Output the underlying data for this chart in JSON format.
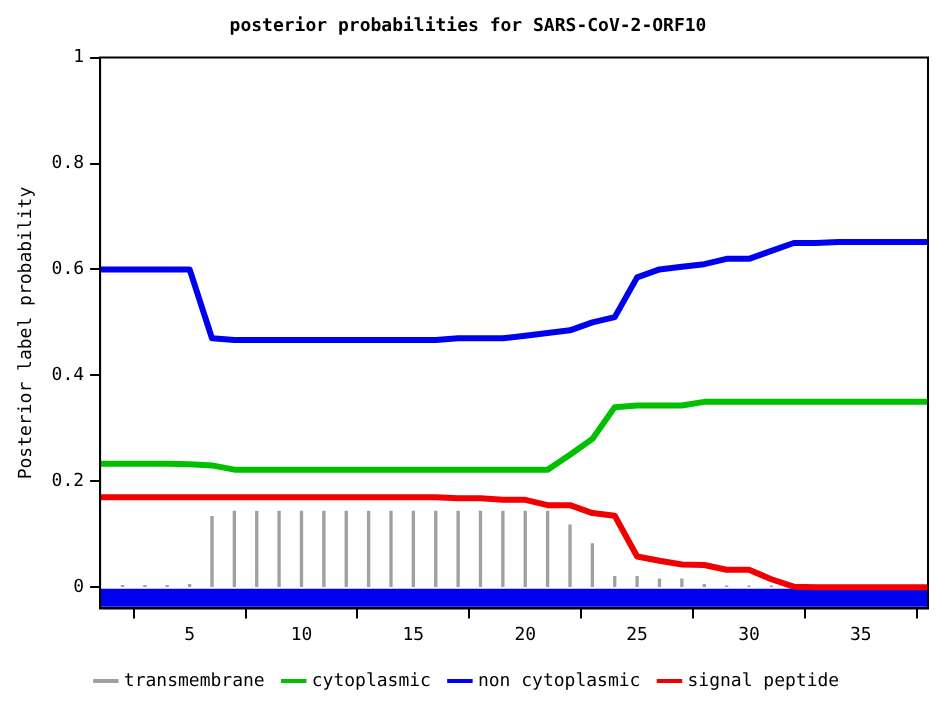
{
  "chart_data": {
    "type": "line",
    "title": "posterior probabilities for SARS-CoV-2-ORF10",
    "ylabel": "Posterior label probability",
    "x": [
      1,
      2,
      3,
      4,
      5,
      6,
      7,
      8,
      9,
      10,
      11,
      12,
      13,
      14,
      15,
      16,
      17,
      18,
      19,
      20,
      21,
      22,
      23,
      24,
      25,
      26,
      27,
      28,
      29,
      30,
      31,
      32,
      33,
      34,
      35,
      36,
      37,
      38
    ],
    "xlim": [
      1,
      38
    ],
    "xticks": [
      5,
      10,
      15,
      20,
      25,
      30,
      35
    ],
    "ylim": [
      -0.04,
      1
    ],
    "yticks": [
      0,
      0.2,
      0.4,
      0.6,
      0.8,
      1
    ],
    "grid": false,
    "legend": "bottom",
    "marker": "none",
    "series": [
      {
        "name": "transmembrane",
        "type": "bar",
        "color": "#a0a0a0",
        "values": [
          null,
          0.003,
          0.003,
          0.003,
          0.005,
          0.133,
          0.143,
          0.143,
          0.143,
          0.143,
          0.143,
          0.143,
          0.143,
          0.143,
          0.143,
          0.143,
          0.143,
          0.143,
          0.143,
          0.143,
          0.143,
          0.117,
          0.082,
          0.02,
          0.02,
          0.015,
          0.015,
          0.005,
          0.002,
          0.002,
          0.002,
          null,
          null,
          null,
          null,
          null,
          null,
          null
        ]
      },
      {
        "name": "cytoplasmic",
        "color": "#00c000",
        "values": [
          0.233,
          0.233,
          0.233,
          0.233,
          0.232,
          0.23,
          0.222,
          0.222,
          0.222,
          0.222,
          0.222,
          0.222,
          0.222,
          0.222,
          0.222,
          0.222,
          0.222,
          0.222,
          0.222,
          0.222,
          0.222,
          0.25,
          0.28,
          0.34,
          0.343,
          0.343,
          0.343,
          0.35,
          0.35,
          0.35,
          0.35,
          0.35,
          0.35,
          0.35,
          0.35,
          0.35,
          0.35,
          0.35
        ]
      },
      {
        "name": "non cytoplasmic",
        "color": "#0000f0",
        "values": [
          0.6,
          0.6,
          0.6,
          0.6,
          0.6,
          0.47,
          0.467,
          0.467,
          0.467,
          0.467,
          0.467,
          0.467,
          0.467,
          0.467,
          0.467,
          0.467,
          0.47,
          0.47,
          0.47,
          0.475,
          0.48,
          0.485,
          0.5,
          0.51,
          0.585,
          0.6,
          0.605,
          0.61,
          0.62,
          0.62,
          0.635,
          0.65,
          0.65,
          0.652,
          0.652,
          0.652,
          0.652,
          0.652
        ]
      },
      {
        "name": "signal peptide",
        "color": "#f00000",
        "values": [
          0.17,
          0.17,
          0.17,
          0.17,
          0.17,
          0.17,
          0.17,
          0.17,
          0.17,
          0.17,
          0.17,
          0.17,
          0.17,
          0.17,
          0.17,
          0.17,
          0.168,
          0.168,
          0.165,
          0.165,
          0.155,
          0.155,
          0.14,
          0.135,
          0.058,
          0.05,
          0.043,
          0.042,
          0.033,
          0.033,
          0.015,
          0.001,
          0,
          0,
          0,
          0,
          0,
          0
        ]
      },
      {
        "color": "#0000f0",
        "values": [
          -0.02,
          -0.02,
          -0.02,
          -0.02,
          -0.02,
          -0.02,
          -0.02,
          -0.02,
          -0.02,
          -0.02,
          -0.02,
          -0.02,
          -0.02,
          -0.02,
          -0.02,
          -0.02,
          -0.02,
          -0.02,
          -0.02,
          -0.02,
          -0.02,
          -0.02,
          -0.02,
          -0.02,
          -0.02,
          -0.02,
          -0.02,
          -0.02,
          -0.02,
          -0.02,
          -0.02,
          -0.02,
          -0.02,
          -0.02,
          -0.02,
          -0.02,
          -0.02,
          -0.02
        ]
      }
    ]
  }
}
